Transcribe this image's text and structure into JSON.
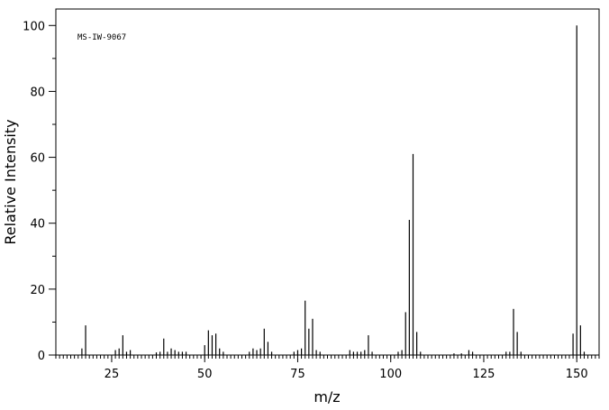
{
  "chart_data": {
    "type": "bar",
    "title": "",
    "annotation": "MS-IW-9067",
    "xlabel": "m/z",
    "ylabel": "Relative Intensity",
    "xlim": [
      10,
      156
    ],
    "ylim": [
      0,
      105
    ],
    "x_ticks": [
      25,
      50,
      75,
      100,
      125,
      150
    ],
    "y_ticks": [
      0,
      20,
      40,
      60,
      80,
      100
    ],
    "x_tick_labels": [
      "25",
      "50",
      "75",
      "100",
      "125",
      "150"
    ],
    "y_tick_labels": [
      "0",
      "20",
      "40",
      "60",
      "80",
      "100"
    ],
    "grid": false,
    "series": [
      {
        "peaks": [
          [
            17,
            2
          ],
          [
            18,
            9
          ],
          [
            26,
            1.5
          ],
          [
            27,
            2
          ],
          [
            28,
            6
          ],
          [
            29,
            1
          ],
          [
            30,
            1.5
          ],
          [
            37,
            0.8
          ],
          [
            38,
            1
          ],
          [
            39,
            5
          ],
          [
            40,
            1
          ],
          [
            41,
            2
          ],
          [
            42,
            1.5
          ],
          [
            43,
            1
          ],
          [
            44,
            1
          ],
          [
            45,
            1
          ],
          [
            50,
            3
          ],
          [
            51,
            7.5
          ],
          [
            52,
            6
          ],
          [
            53,
            6.5
          ],
          [
            54,
            2
          ],
          [
            55,
            1
          ],
          [
            62,
            1
          ],
          [
            63,
            2
          ],
          [
            64,
            1.5
          ],
          [
            65,
            2
          ],
          [
            66,
            8
          ],
          [
            67,
            4
          ],
          [
            68,
            1
          ],
          [
            74,
            1
          ],
          [
            75,
            1.5
          ],
          [
            76,
            2
          ],
          [
            77,
            16.5
          ],
          [
            78,
            8
          ],
          [
            79,
            11
          ],
          [
            80,
            1.5
          ],
          [
            81,
            1
          ],
          [
            89,
            1.5
          ],
          [
            90,
            1
          ],
          [
            91,
            1
          ],
          [
            92,
            1
          ],
          [
            93,
            1.5
          ],
          [
            94,
            6
          ],
          [
            95,
            1
          ],
          [
            102,
            1
          ],
          [
            103,
            1.5
          ],
          [
            104,
            13
          ],
          [
            105,
            41
          ],
          [
            106,
            61
          ],
          [
            107,
            7
          ],
          [
            108,
            1
          ],
          [
            117,
            0.5
          ],
          [
            119,
            0.5
          ],
          [
            121,
            1.5
          ],
          [
            122,
            1
          ],
          [
            131,
            1
          ],
          [
            132,
            1
          ],
          [
            133,
            14
          ],
          [
            134,
            7
          ],
          [
            135,
            1
          ],
          [
            149,
            6.5
          ],
          [
            150,
            100
          ],
          [
            151,
            9
          ],
          [
            152,
            1
          ]
        ]
      }
    ]
  }
}
